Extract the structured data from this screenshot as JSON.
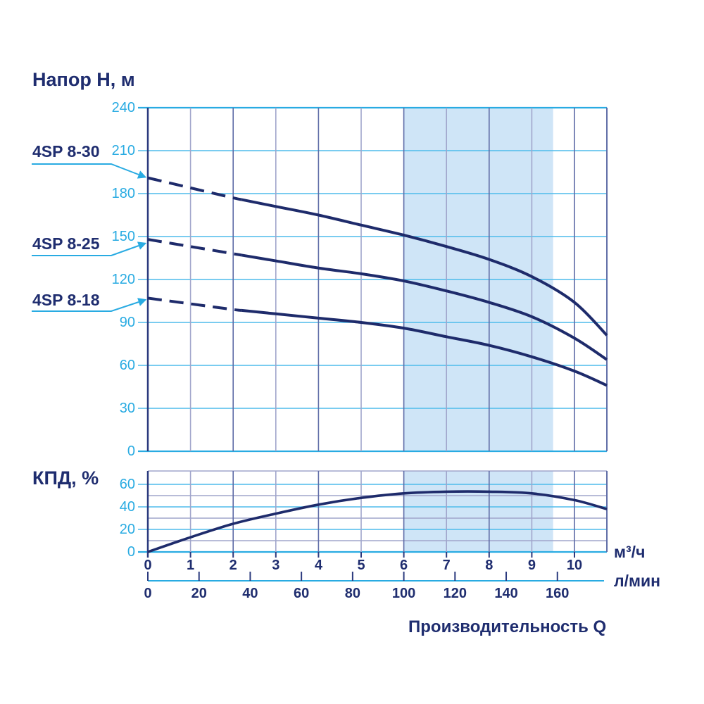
{
  "colors": {
    "navy_text": "#1f2d6f",
    "curve": "#1e2b6b",
    "axis_navy": "#2b3a7e",
    "cyan_strong": "#29abe2",
    "cyan_grid": "#4fbcec",
    "slate_dark": "#5e6ba6",
    "slate_light": "#a0a5cb",
    "shade": "#cfe5f7"
  },
  "chart_data": {
    "type": "line",
    "x": {
      "label": "Производительность Q",
      "units": [
        "м³/ч",
        "л/мин"
      ],
      "xlim_m3h": [
        0,
        10.76
      ],
      "ticks_m3h": [
        0,
        1,
        2,
        3,
        4,
        5,
        6,
        7,
        8,
        9,
        10
      ],
      "ticks_lmin": [
        0,
        20,
        40,
        60,
        80,
        100,
        120,
        140,
        160
      ],
      "lmin_per_m3h": 16.667
    },
    "operating_range_m3h": [
      6,
      9.5
    ],
    "charts": [
      {
        "name": "head",
        "title": "Напор Н, м",
        "ylim": [
          0,
          240
        ],
        "yticks": [
          0,
          30,
          60,
          90,
          120,
          150,
          180,
          210,
          240
        ],
        "grid": "major-cyan-every-30, vertical-every-1-m3h",
        "series": [
          {
            "name": "4SP 8-30",
            "dash_end": 2.2,
            "points": [
              [
                0,
                191
              ],
              [
                1,
                184
              ],
              [
                2,
                177
              ],
              [
                3,
                171
              ],
              [
                4,
                165
              ],
              [
                5,
                158
              ],
              [
                6,
                151
              ],
              [
                7,
                143
              ],
              [
                8,
                134
              ],
              [
                9,
                122
              ],
              [
                10,
                104
              ],
              [
                10.76,
                81
              ]
            ]
          },
          {
            "name": "4SP 8-25",
            "dash_end": 2.2,
            "points": [
              [
                0,
                148
              ],
              [
                1,
                143
              ],
              [
                2,
                138
              ],
              [
                3,
                133
              ],
              [
                4,
                128
              ],
              [
                5,
                124
              ],
              [
                6,
                119
              ],
              [
                7,
                112
              ],
              [
                8,
                104
              ],
              [
                9,
                94
              ],
              [
                10,
                79
              ],
              [
                10.76,
                64
              ]
            ]
          },
          {
            "name": "4SP 8-18",
            "dash_end": 2.2,
            "points": [
              [
                0,
                107
              ],
              [
                1,
                103
              ],
              [
                2,
                99
              ],
              [
                3,
                96
              ],
              [
                4,
                93
              ],
              [
                5,
                90
              ],
              [
                6,
                86
              ],
              [
                7,
                80
              ],
              [
                8,
                74
              ],
              [
                9,
                66
              ],
              [
                10,
                56
              ],
              [
                10.76,
                46
              ]
            ]
          }
        ]
      },
      {
        "name": "efficiency",
        "title": "КПД, %",
        "ylim": [
          0,
          70
        ],
        "yticks": [
          0,
          20,
          40,
          60
        ],
        "grid": "cyan-every-20, gray-every-10, vertical-every-1-m3h",
        "series": [
          {
            "name": "КПД",
            "points": [
              [
                0,
                0
              ],
              [
                1,
                13
              ],
              [
                2,
                25
              ],
              [
                3,
                34
              ],
              [
                4,
                42
              ],
              [
                5,
                48
              ],
              [
                6,
                52
              ],
              [
                7,
                53.5
              ],
              [
                8,
                53.5
              ],
              [
                9,
                52
              ],
              [
                10,
                46
              ],
              [
                10.76,
                38
              ]
            ]
          }
        ]
      }
    ]
  }
}
